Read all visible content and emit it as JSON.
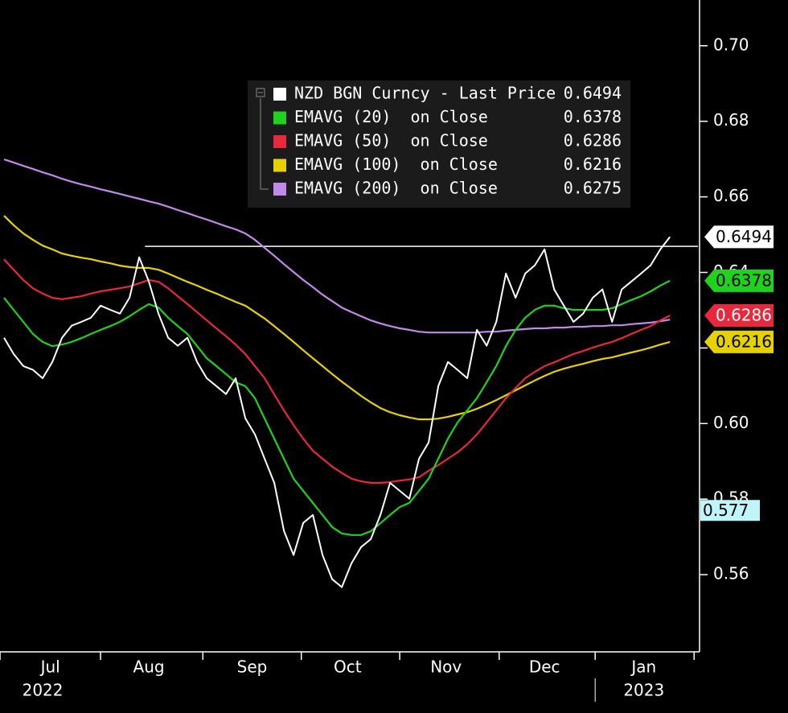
{
  "chart_data": {
    "type": "line",
    "series": [
      {
        "name": "NZD BGN Curncy - Last Price",
        "color": "#ffffff",
        "axis_box": true,
        "box_text": "#000000",
        "values": [
          0.6227,
          0.6184,
          0.6152,
          0.6142,
          0.612,
          0.6163,
          0.6227,
          0.6259,
          0.6269,
          0.628,
          0.6312,
          0.6301,
          0.6291,
          0.6333,
          0.644,
          0.6376,
          0.6291,
          0.6227,
          0.6206,
          0.6227,
          0.6163,
          0.612,
          0.6099,
          0.6078,
          0.612,
          0.6014,
          0.5971,
          0.5907,
          0.5843,
          0.5716,
          0.5652,
          0.5737,
          0.5758,
          0.5652,
          0.5588,
          0.5567,
          0.563,
          0.5673,
          0.5694,
          0.5758,
          0.5843,
          0.5822,
          0.5801,
          0.5907,
          0.595,
          0.6099,
          0.6163,
          0.6142,
          0.612,
          0.6248,
          0.6206,
          0.6269,
          0.6397,
          0.6333,
          0.6397,
          0.6419,
          0.6461,
          0.6355,
          0.6312,
          0.6269,
          0.6291,
          0.6333,
          0.6355,
          0.6269,
          0.6355,
          0.6376,
          0.6397,
          0.6419,
          0.6461,
          0.6494
        ]
      },
      {
        "name": "EMAVG (20)  on Close",
        "color": "#1ed21e",
        "axis_box": true,
        "box_text": "#000000",
        "values": [
          0.6333,
          0.6301,
          0.6269,
          0.6237,
          0.6216,
          0.6205,
          0.6209,
          0.6216,
          0.6226,
          0.6237,
          0.6248,
          0.6258,
          0.6269,
          0.6284,
          0.6301,
          0.6316,
          0.6307,
          0.628,
          0.6258,
          0.6237,
          0.6205,
          0.6173,
          0.6152,
          0.6131,
          0.6109,
          0.6099,
          0.6067,
          0.6013,
          0.596,
          0.5907,
          0.5854,
          0.5822,
          0.579,
          0.5758,
          0.5726,
          0.5709,
          0.5705,
          0.5705,
          0.5715,
          0.5736,
          0.5758,
          0.5779,
          0.579,
          0.5822,
          0.5854,
          0.5907,
          0.596,
          0.6003,
          0.6035,
          0.6067,
          0.6109,
          0.6152,
          0.6205,
          0.6248,
          0.628,
          0.6301,
          0.6312,
          0.6312,
          0.6305,
          0.6301,
          0.6301,
          0.6301,
          0.6301,
          0.6305,
          0.6316,
          0.6327,
          0.6337,
          0.635,
          0.6365,
          0.6378
        ]
      },
      {
        "name": "EMAVG (50)  on Close",
        "color": "#e8283c",
        "axis_box": true,
        "box_text": "#ffffff",
        "values": [
          0.6435,
          0.6407,
          0.638,
          0.6358,
          0.6344,
          0.6333,
          0.6329,
          0.6333,
          0.6337,
          0.6344,
          0.635,
          0.6354,
          0.6358,
          0.6363,
          0.6371,
          0.638,
          0.6375,
          0.6358,
          0.6337,
          0.6316,
          0.6295,
          0.6273,
          0.6252,
          0.6231,
          0.6209,
          0.6184,
          0.6152,
          0.612,
          0.6077,
          0.6035,
          0.5996,
          0.596,
          0.5928,
          0.5907,
          0.5886,
          0.5869,
          0.5854,
          0.5847,
          0.5843,
          0.5843,
          0.5845,
          0.5849,
          0.5852,
          0.5858,
          0.5875,
          0.589,
          0.5907,
          0.5924,
          0.5945,
          0.5971,
          0.6003,
          0.6035,
          0.6067,
          0.6094,
          0.612,
          0.6137,
          0.6152,
          0.6162,
          0.6173,
          0.6184,
          0.6192,
          0.6201,
          0.6209,
          0.6216,
          0.6226,
          0.6237,
          0.6248,
          0.6258,
          0.6273,
          0.6286
        ]
      },
      {
        "name": "EMAVG (100)  on Close",
        "color": "#e6d200",
        "axis_box": true,
        "box_text": "#000000",
        "values": [
          0.655,
          0.6525,
          0.6503,
          0.6486,
          0.6471,
          0.6461,
          0.645,
          0.6444,
          0.6439,
          0.6435,
          0.6429,
          0.6424,
          0.6418,
          0.6414,
          0.6412,
          0.6412,
          0.6407,
          0.6397,
          0.6386,
          0.6375,
          0.6365,
          0.6354,
          0.6344,
          0.6333,
          0.6322,
          0.6312,
          0.6295,
          0.6278,
          0.6258,
          0.6237,
          0.6216,
          0.6194,
          0.6173,
          0.6152,
          0.6131,
          0.6111,
          0.6092,
          0.6073,
          0.6056,
          0.6041,
          0.603,
          0.6022,
          0.6016,
          0.6011,
          0.6011,
          0.6013,
          0.6018,
          0.6024,
          0.603,
          0.6039,
          0.605,
          0.6062,
          0.6075,
          0.6088,
          0.6101,
          0.6114,
          0.6126,
          0.6137,
          0.6145,
          0.6152,
          0.6158,
          0.6165,
          0.6171,
          0.6175,
          0.6182,
          0.6188,
          0.6194,
          0.6201,
          0.6209,
          0.6216
        ]
      },
      {
        "name": "EMAVG (200)  on Close",
        "color": "#c08ae6",
        "axis_box": false,
        "box_text": "#000000",
        "values": [
          0.6699,
          0.6691,
          0.6682,
          0.6674,
          0.6665,
          0.6657,
          0.6648,
          0.664,
          0.6633,
          0.6627,
          0.662,
          0.6614,
          0.6608,
          0.6601,
          0.6595,
          0.6588,
          0.6582,
          0.6574,
          0.6565,
          0.6557,
          0.6548,
          0.654,
          0.6531,
          0.6522,
          0.6514,
          0.6503,
          0.6486,
          0.6465,
          0.6444,
          0.6422,
          0.6401,
          0.638,
          0.6361,
          0.6341,
          0.6324,
          0.6307,
          0.6295,
          0.6284,
          0.6273,
          0.6265,
          0.6258,
          0.6252,
          0.6248,
          0.6243,
          0.6241,
          0.6241,
          0.6241,
          0.6241,
          0.6241,
          0.6241,
          0.6243,
          0.6243,
          0.6246,
          0.6248,
          0.625,
          0.6252,
          0.6252,
          0.6254,
          0.6254,
          0.6256,
          0.6256,
          0.6258,
          0.6258,
          0.626,
          0.626,
          0.6263,
          0.6265,
          0.6267,
          0.6271,
          0.6275
        ]
      }
    ],
    "xlim": [
      -0.42,
      71.9
    ],
    "xticks": [
      -0.42,
      10,
      20.6,
      30.8,
      41,
      51.3,
      61.25,
      71.5
    ],
    "month_labels": [
      {
        "value": 4.8,
        "label": "Jul"
      },
      {
        "value": 15,
        "label": "Aug"
      },
      {
        "value": 25.7,
        "label": "Sep"
      },
      {
        "value": 35.6,
        "label": "Oct"
      },
      {
        "value": 45.8,
        "label": "Nov"
      },
      {
        "value": 56,
        "label": "Dec"
      },
      {
        "value": 66.3,
        "label": "Jan"
      }
    ],
    "year_labels": [
      {
        "value": 4,
        "label": "2022"
      },
      {
        "value": 66.3,
        "label": "2023"
      }
    ],
    "year_divider": 61.25,
    "ylim": [
      0.54,
      0.7121
    ],
    "yticks": [
      {
        "value": 0.56,
        "label": "0.56"
      },
      {
        "value": 0.58,
        "label": "0.58"
      },
      {
        "value": 0.6,
        "label": "0.60"
      },
      {
        "value": 0.62,
        "label": "0.62"
      },
      {
        "value": 0.64,
        "label": "0.64"
      },
      {
        "value": 0.66,
        "label": "0.66"
      },
      {
        "value": 0.68,
        "label": "0.68"
      },
      {
        "value": 0.7,
        "label": "0.70"
      }
    ],
    "grid": true,
    "reference_line": {
      "value": 0.6469,
      "x_start": 14.6
    },
    "crosshair": {
      "value": 0.577,
      "color": "#bff4f8"
    }
  }
}
